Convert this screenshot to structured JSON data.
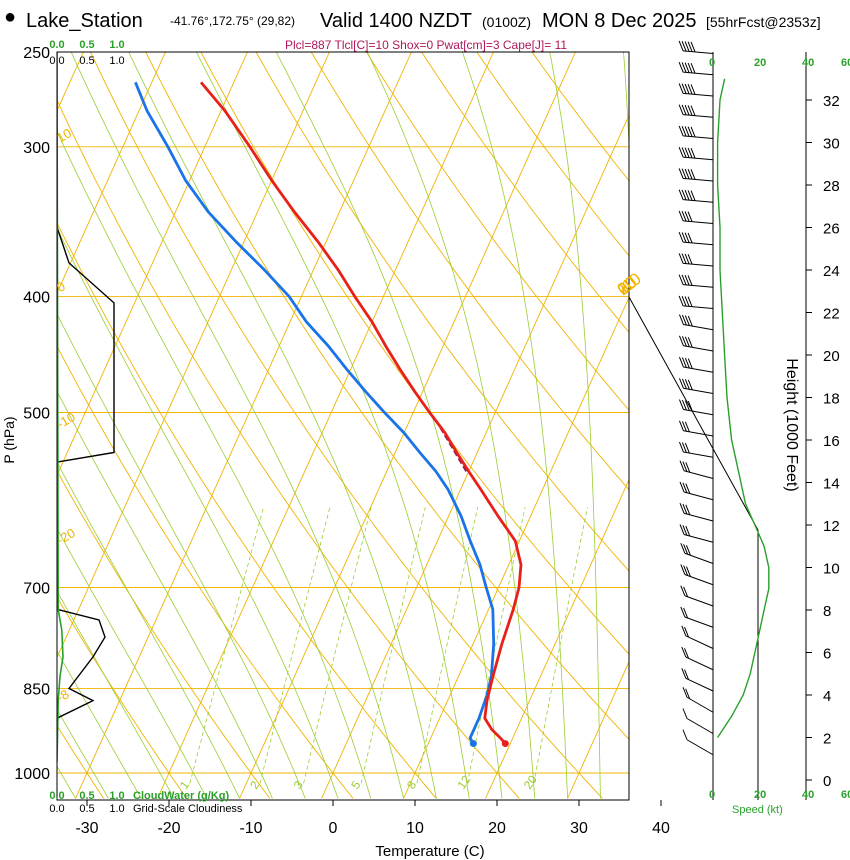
{
  "header": {
    "station": "Lake_Station",
    "coords": "-41.76°,172.75° (29,82)",
    "valid": "Valid 1400 NZDT",
    "utc": "(0100Z)",
    "date": "MON 8 Dec 2025",
    "forecast": "[55hrFcst@2353z]",
    "params": "Plcl=887 Tlcl[C]=10 Shox=0 Pwat[cm]=3 Cape[J]= 11"
  },
  "colors": {
    "temperature": "#e8201a",
    "dewpoint": "#1a73e8",
    "isotherm": "#f0b400",
    "dry_adiabat": "#f0b400",
    "moist_adiabat": "#9acd32",
    "mixing_ratio": "#9acd32",
    "cloud": "#2aa02a",
    "parcel": "#8b1a5a"
  },
  "chart_data": {
    "type": "line",
    "title": "Skew-T log-P sounding",
    "xlabel": "Temperature (C)",
    "ylabel": "P (hPa)",
    "y2label": "Height (1000 Feet)",
    "x_ticks": [
      "-30",
      "-20",
      "-10",
      "0",
      "10",
      "20",
      "30",
      "40"
    ],
    "x_tick_values": [
      -30,
      -20,
      -10,
      0,
      10,
      20,
      30,
      40
    ],
    "p_ticks": [
      "250",
      "300",
      "400",
      "500",
      "700",
      "850",
      "1000"
    ],
    "p_tick_values": [
      250,
      300,
      400,
      500,
      700,
      850,
      1000
    ],
    "height_ticks": [
      "0",
      "2",
      "4",
      "6",
      "8",
      "10",
      "12",
      "14",
      "16",
      "18",
      "20",
      "22",
      "24",
      "26",
      "28",
      "30",
      "32"
    ],
    "height_tick_values": [
      0,
      2,
      4,
      6,
      8,
      10,
      12,
      14,
      16,
      18,
      20,
      22,
      24,
      26,
      28,
      30,
      32
    ],
    "theta_labels": [
      "-10",
      "0",
      "10",
      "20",
      "30"
    ],
    "theta_label_values": [
      -10,
      0,
      10,
      20,
      30
    ],
    "theta_label_text": [
      "-10",
      "0",
      "10",
      "20",
      "30"
    ],
    "isotherm_left_labels": [
      "10",
      "0",
      "-10",
      "-20",
      "-8"
    ],
    "mixing_ratio_labels": [
      "1",
      "2",
      "3",
      "5",
      "8",
      "12",
      "20"
    ],
    "mixing_ratio_values": [
      1,
      2,
      3,
      5,
      8,
      12,
      20
    ],
    "cloud_ticks_top": [
      "0.0",
      "0.5",
      "1.0"
    ],
    "cloud_ticks_top_green": [
      "0.0",
      "0.5",
      "1.0"
    ],
    "cloud_ticks_bottom": [
      "0.0",
      "0.5",
      "1.0"
    ],
    "cloud_ticks_bottom_green": [
      "0.0",
      "0.5",
      "1.0"
    ],
    "cloud_water_label": "CloudWater (g/Kg)",
    "cloudiness_label": "Grid-Scale Cloudiness",
    "speed_ticks": [
      "0",
      "20",
      "40",
      "60"
    ],
    "speed_label": "Speed (kt)",
    "temperature": {
      "p": [
        945,
        935,
        920,
        900,
        870,
        830,
        780,
        730,
        700,
        670,
        640,
        610,
        580,
        560,
        540,
        520,
        500,
        480,
        460,
        440,
        420,
        400,
        380,
        360,
        340,
        320,
        300,
        280,
        265
      ],
      "t": [
        19.4,
        18.5,
        17.0,
        15.5,
        14.8,
        14.2,
        13.5,
        13.0,
        12.5,
        11.5,
        9.5,
        6.0,
        2.5,
        0.0,
        -2.5,
        -5.0,
        -8.0,
        -11.0,
        -14.0,
        -17.0,
        -20.0,
        -23.5,
        -27.0,
        -31.0,
        -35.5,
        -40.0,
        -44.5,
        -49.5,
        -54.0
      ]
    },
    "dewpoint": {
      "p": [
        945,
        935,
        900,
        860,
        830,
        780,
        730,
        700,
        670,
        640,
        610,
        580,
        560,
        540,
        520,
        500,
        480,
        460,
        440,
        420,
        400,
        380,
        360,
        340,
        320,
        300,
        280,
        265
      ],
      "td": [
        15.5,
        14.8,
        14.8,
        14.5,
        14.0,
        12.5,
        10.5,
        8.5,
        6.5,
        4.0,
        1.5,
        -1.5,
        -4.0,
        -7.0,
        -10.0,
        -13.5,
        -17.0,
        -20.5,
        -24.0,
        -28.0,
        -31.5,
        -36.0,
        -41.0,
        -46.0,
        -50.5,
        -54.5,
        -59.0,
        -62.0
      ]
    },
    "parcel": {
      "p": [
        560,
        510
      ],
      "t": [
        -0.3,
        -6.5
      ]
    },
    "wind_speed_kt": [
      8,
      12,
      15,
      18,
      20,
      22,
      22,
      24,
      25,
      26,
      28,
      30,
      30,
      30,
      30,
      32,
      35,
      35,
      38,
      40,
      42,
      40,
      38,
      36,
      35,
      40,
      45,
      45,
      45,
      45,
      45,
      45,
      45,
      45
    ],
    "wind_heights_kft": [
      1,
      2,
      3,
      4,
      5,
      6,
      7,
      8,
      9,
      10,
      11,
      12,
      13,
      14,
      15,
      16,
      17,
      18,
      19,
      20,
      21,
      22,
      23,
      24,
      25,
      26,
      27,
      28,
      29,
      30,
      31,
      32,
      33,
      34
    ],
    "wind_direction_deg": [
      300,
      300,
      300,
      295,
      295,
      295,
      290,
      290,
      290,
      290,
      285,
      285,
      285,
      285,
      280,
      280,
      280,
      280,
      280,
      280,
      280,
      275,
      275,
      275,
      275,
      275,
      275,
      275,
      275,
      275,
      275,
      275,
      275,
      275
    ],
    "speed_profile": {
      "height_kft": [
        2,
        3,
        4,
        5,
        6,
        7,
        8,
        9,
        10,
        11,
        12,
        13,
        14,
        15,
        16,
        18,
        20,
        22,
        24,
        26,
        28,
        30,
        32,
        33
      ],
      "speed_kt": [
        2,
        8,
        13,
        16,
        18,
        20,
        22,
        24,
        24,
        22,
        18,
        14,
        12,
        10,
        8,
        6,
        5,
        4,
        3,
        3,
        2,
        2,
        3,
        5
      ]
    }
  }
}
